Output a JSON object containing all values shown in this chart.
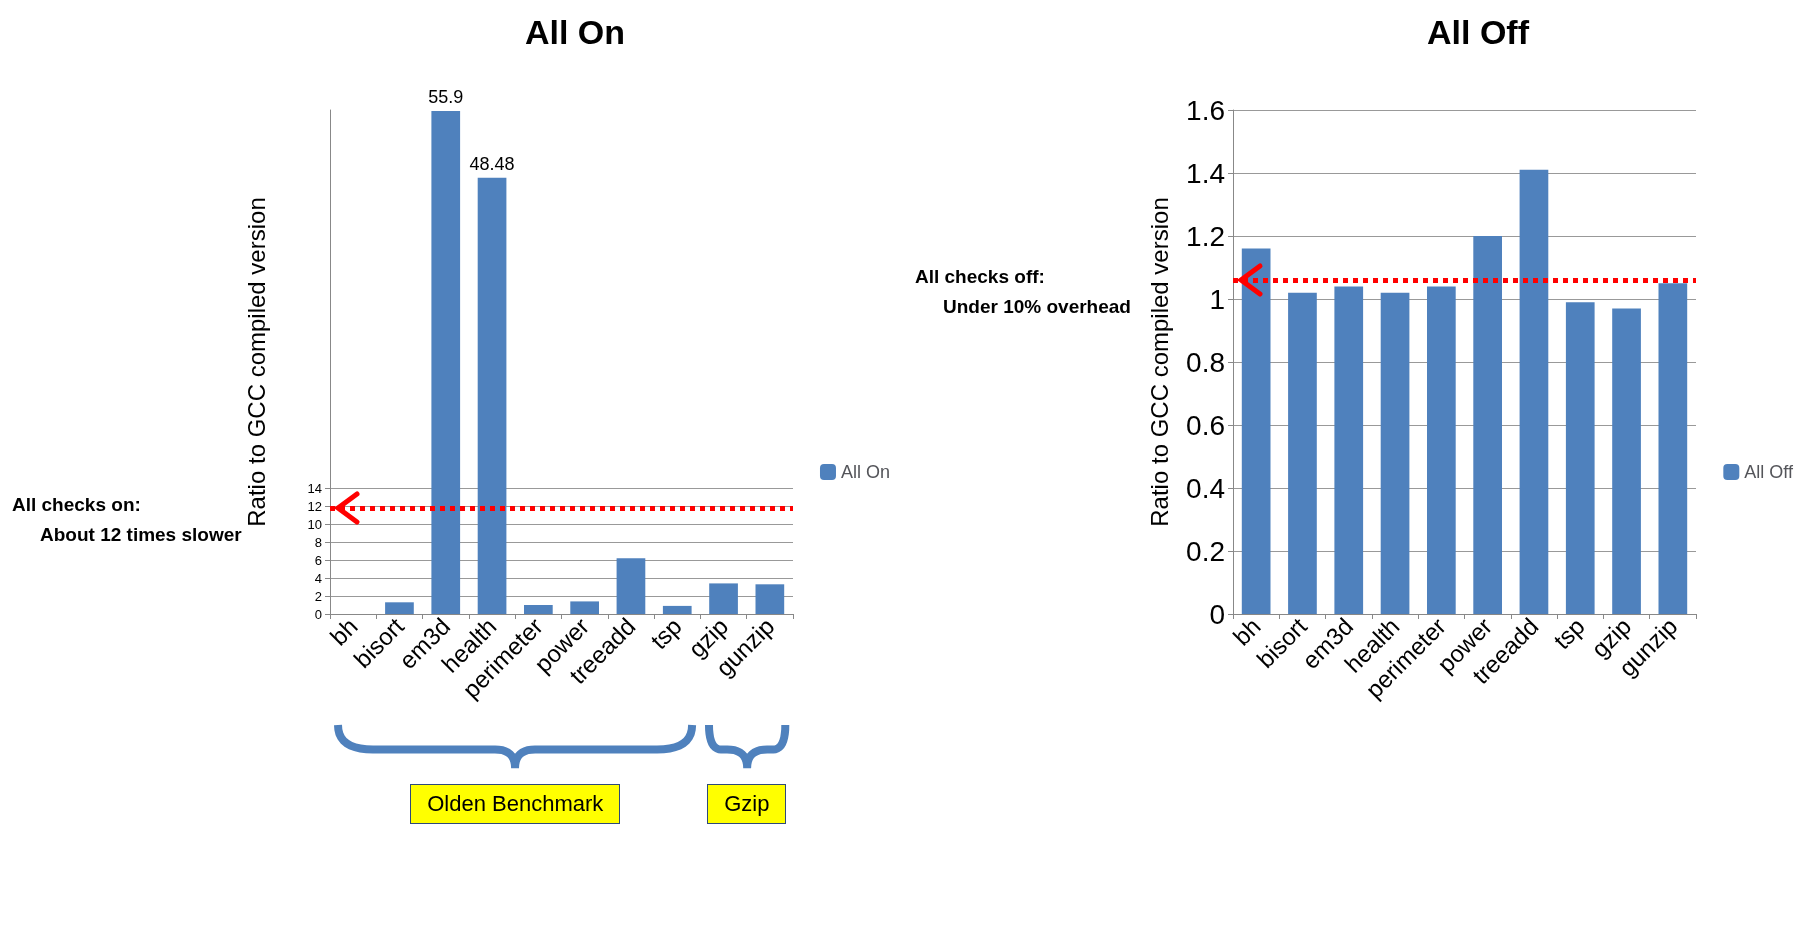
{
  "chart_data": [
    {
      "type": "bar",
      "title": "All On",
      "ylabel": "Ratio to GCC compiled version",
      "categories": [
        "bh",
        "bisort",
        "em3d",
        "health",
        "perimeter",
        "power",
        "treeadd",
        "tsp",
        "gzip",
        "gunzip"
      ],
      "series": [
        {
          "name": "All On",
          "color": "#4f81bd",
          "values": [
            null,
            1.3,
            55.9,
            48.48,
            1.0,
            1.4,
            6.2,
            0.9,
            3.4,
            3.3
          ],
          "value_labels": [
            null,
            null,
            "55.9",
            "48.48",
            null,
            null,
            null,
            null,
            null,
            null
          ]
        }
      ],
      "ylim": [
        0,
        56
      ],
      "yticks": [
        0,
        2,
        4,
        6,
        8,
        10,
        12,
        14
      ],
      "grid": "y",
      "legend": "right",
      "ref_lines": [
        {
          "axis": "y",
          "value": 11.8,
          "color": "#ff0000",
          "line_style": "dotted"
        }
      ],
      "annotations": [
        "All checks on:",
        "About 12 times slower",
        "Olden Benchmark",
        "Gzip"
      ]
    },
    {
      "type": "bar",
      "title": "All Off",
      "ylabel": "Ratio to GCC compiled version",
      "categories": [
        "bh",
        "bisort",
        "em3d",
        "health",
        "perimeter",
        "power",
        "treeadd",
        "tsp",
        "gzip",
        "gunzip"
      ],
      "series": [
        {
          "name": "All Off",
          "color": "#4f81bd",
          "values": [
            1.16,
            1.02,
            1.04,
            1.02,
            1.04,
            1.2,
            1.41,
            0.99,
            0.97,
            1.05
          ]
        }
      ],
      "ylim": [
        0,
        1.6
      ],
      "yticks": [
        0,
        0.2,
        0.4,
        0.6,
        0.8,
        1,
        1.2,
        1.4,
        1.6
      ],
      "grid": "y",
      "legend": "right",
      "ref_lines": [
        {
          "axis": "y",
          "value": 1.06,
          "color": "#ff0000",
          "line_style": "dotted"
        }
      ],
      "annotations": [
        "All checks off:",
        "Under 10% overhead"
      ]
    }
  ]
}
